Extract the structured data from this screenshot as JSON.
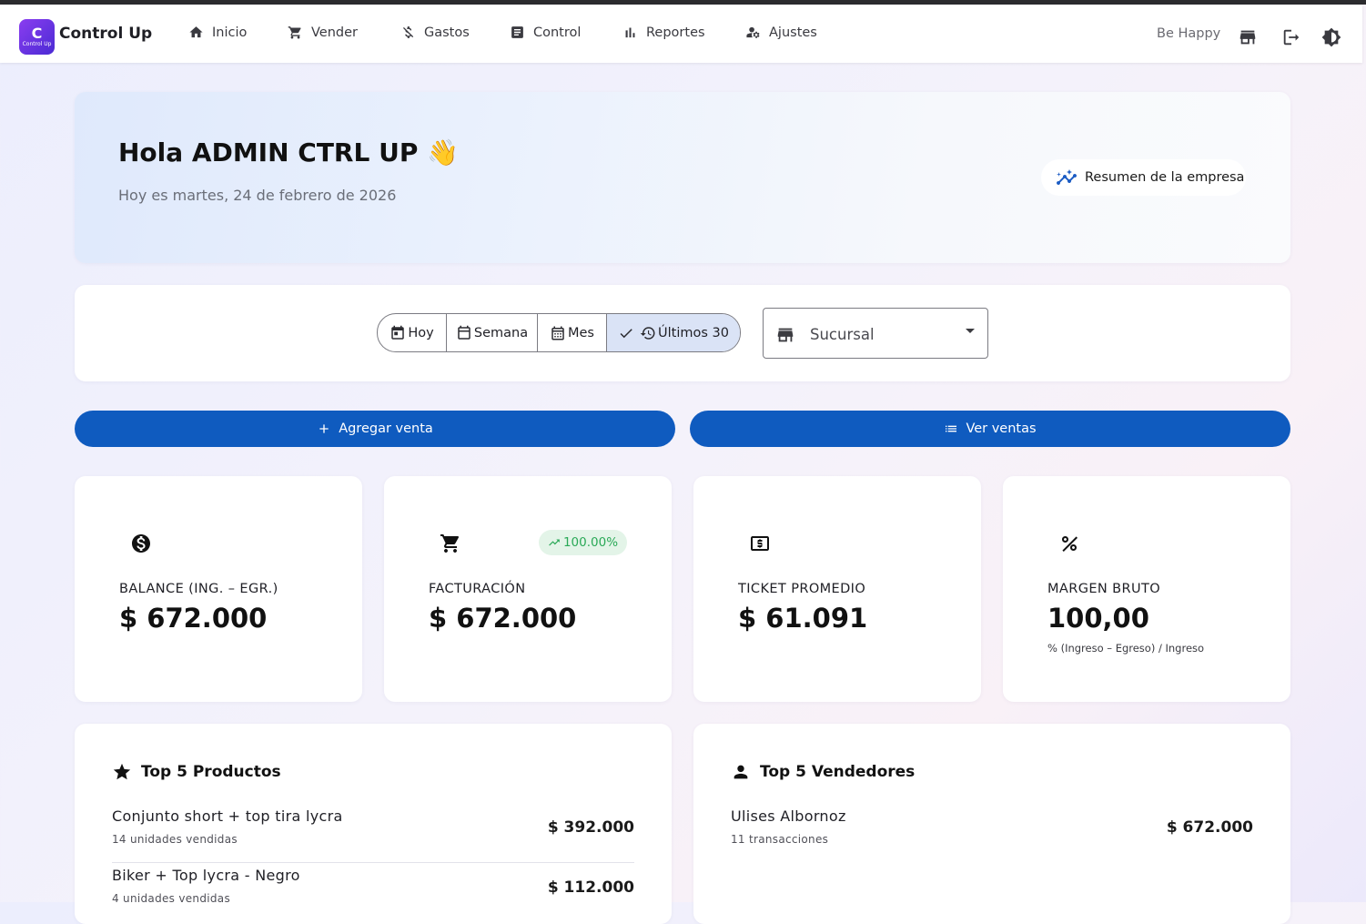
{
  "brand": {
    "logo_big": "C",
    "logo_small": "Control Up",
    "name": "Control Up"
  },
  "nav": [
    {
      "label": "Inicio",
      "icon": "home-icon"
    },
    {
      "label": "Vender",
      "icon": "cart-icon"
    },
    {
      "label": "Gastos",
      "icon": "money-off-icon"
    },
    {
      "label": "Control",
      "icon": "list-box-icon"
    },
    {
      "label": "Reportes",
      "icon": "bar-chart-icon"
    },
    {
      "label": "Ajustes",
      "icon": "settings-user-icon"
    }
  ],
  "user": {
    "store_name": "Be Happy"
  },
  "hero": {
    "greeting": "Hola ADMIN CTRL UP 👋",
    "date_line": "Hoy es martes, 24 de febrero de 2026",
    "summary_button": "Resumen de la empresa"
  },
  "filters": {
    "periods": [
      {
        "label": "Hoy",
        "active": false
      },
      {
        "label": "Semana",
        "active": false
      },
      {
        "label": "Mes",
        "active": false
      },
      {
        "label": "Últimos 30",
        "active": true
      }
    ],
    "branch_placeholder": "Sucursal"
  },
  "actions": {
    "add_sale": "Agregar venta",
    "view_sales": "Ver ventas"
  },
  "stats": [
    {
      "label": "BALANCE (ING. – EGR.)",
      "value": "$ 672.000",
      "icon": "dollar-circle-icon"
    },
    {
      "label": "FACTURACIÓN",
      "value": "$ 672.000",
      "icon": "cart-icon",
      "badge": "100.00%"
    },
    {
      "label": "TICKET PROMEDIO",
      "value": "$ 61.091",
      "icon": "cash-icon"
    },
    {
      "label": "MARGEN BRUTO",
      "value": "100,00",
      "icon": "percent-icon",
      "note": "% (Ingreso – Egreso) / Ingreso"
    }
  ],
  "top_products": {
    "title": "Top 5 Productos",
    "items": [
      {
        "name": "Conjunto short + top tira lycra",
        "sub": "14 unidades vendidas",
        "amount": "$ 392.000"
      },
      {
        "name": "Biker + Top lycra - Negro",
        "sub": "4 unidades vendidas",
        "amount": "$ 112.000"
      }
    ]
  },
  "top_sellers": {
    "title": "Top 5 Vendedores",
    "items": [
      {
        "name": "Ulises Albornoz",
        "sub": "11 transacciones",
        "amount": "$ 672.000"
      }
    ]
  },
  "colors": {
    "primary": "#0f5bbf",
    "badge_green": "#2aa957",
    "logo_purple": "#6a35e4"
  }
}
